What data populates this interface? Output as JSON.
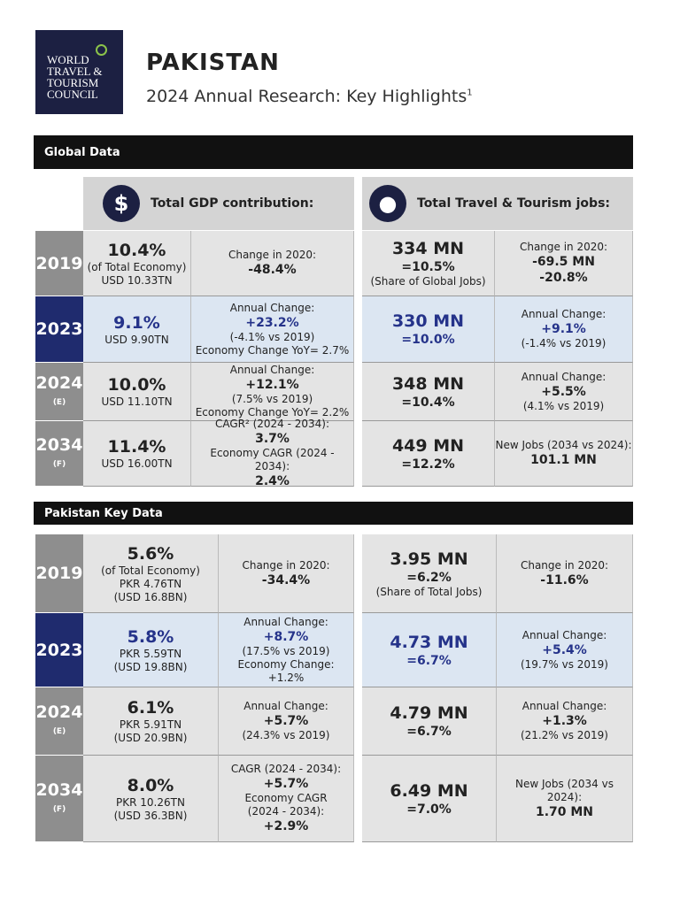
{
  "header": {
    "logo": [
      "WORLD",
      "TRAVEL &",
      "TOURISM",
      "COUNCIL"
    ],
    "title": "PAKISTAN",
    "subtitle": "2024 Annual Research: Key Highlights",
    "footnote_mark": "1"
  },
  "global": {
    "title": "Global Data",
    "gdp_header": "Total GDP contribution:",
    "jobs_header": "Total Travel & Tourism jobs:",
    "rows": [
      {
        "year": "2019",
        "gdp": [
          "10.4%",
          "(of Total Economy)",
          "USD 10.33TN"
        ],
        "gdp_change": [
          "Change in 2020:",
          "-48.4%"
        ],
        "jobs": [
          "334 MN",
          "=10.5%",
          "(Share of Global Jobs)"
        ],
        "jobs_change": [
          "Change in 2020:",
          "-69.5 MN",
          "-20.8%"
        ]
      },
      {
        "year": "2023",
        "gdp": [
          "9.1%",
          "USD 9.90TN"
        ],
        "gdp_change": [
          "Annual Change:",
          "+23.2%",
          "(-4.1% vs 2019)",
          "Economy Change YoY= 2.7%"
        ],
        "jobs": [
          "330 MN",
          "=10.0%"
        ],
        "jobs_change": [
          "Annual Change:",
          "+9.1%",
          "(-1.4% vs 2019)"
        ]
      },
      {
        "year": "2024",
        "note": "(E)",
        "gdp": [
          "10.0%",
          "USD 11.10TN"
        ],
        "gdp_change": [
          "Annual Change:",
          "+12.1%",
          "(7.5% vs 2019)",
          "Economy Change YoY= 2.2%"
        ],
        "jobs": [
          "348 MN",
          "=10.4%"
        ],
        "jobs_change": [
          "Annual Change:",
          "+5.5%",
          "(4.1% vs 2019)"
        ]
      },
      {
        "year": "2034",
        "note": "(F)",
        "gdp": [
          "11.4%",
          "USD 16.00TN"
        ],
        "gdp_change": [
          "CAGR² (2024 - 2034):",
          "3.7%",
          "Economy CAGR (2024 - 2034):",
          "2.4%"
        ],
        "jobs": [
          "449 MN",
          "=12.2%"
        ],
        "jobs_change": [
          "New Jobs (2034 vs 2024):",
          "101.1 MN"
        ]
      }
    ]
  },
  "pakistan": {
    "title": "Pakistan Key Data",
    "rows": [
      {
        "year": "2019",
        "gdp": [
          "5.6%",
          "(of Total Economy)",
          "PKR 4.76TN",
          "(USD 16.8BN)"
        ],
        "gdp_change": [
          "Change in 2020:",
          "-34.4%"
        ],
        "jobs": [
          "3.95 MN",
          "=6.2%",
          "(Share of Total Jobs)"
        ],
        "jobs_change": [
          "Change in 2020:",
          "-11.6%"
        ]
      },
      {
        "year": "2023",
        "gdp": [
          "5.8%",
          "PKR 5.59TN",
          "(USD 19.8BN)"
        ],
        "gdp_change": [
          "Annual Change:",
          "+8.7%",
          "(17.5% vs 2019)",
          "Economy Change: +1.2%"
        ],
        "jobs": [
          "4.73 MN",
          "=6.7%"
        ],
        "jobs_change": [
          "Annual Change:",
          "+5.4%",
          "(19.7% vs 2019)"
        ]
      },
      {
        "year": "2024",
        "note": "(E)",
        "gdp": [
          "6.1%",
          "PKR 5.91TN",
          "(USD 20.9BN)"
        ],
        "gdp_change": [
          "Annual Change:",
          "+5.7%",
          "(24.3% vs 2019)"
        ],
        "jobs": [
          "4.79 MN",
          "=6.7%"
        ],
        "jobs_change": [
          "Annual Change:",
          "+1.3%",
          "(21.2% vs 2019)"
        ]
      },
      {
        "year": "2034",
        "note": "(F)",
        "gdp": [
          "8.0%",
          "PKR 10.26TN",
          "(USD 36.3BN)"
        ],
        "gdp_change": [
          "CAGR (2024 - 2034):",
          "+5.7%",
          "Economy CAGR",
          "(2024 - 2034):",
          "+2.9%"
        ],
        "jobs": [
          "6.49 MN",
          "=7.0%"
        ],
        "jobs_change": [
          "New Jobs (2034 vs 2024):",
          "1.70 MN"
        ]
      }
    ]
  }
}
